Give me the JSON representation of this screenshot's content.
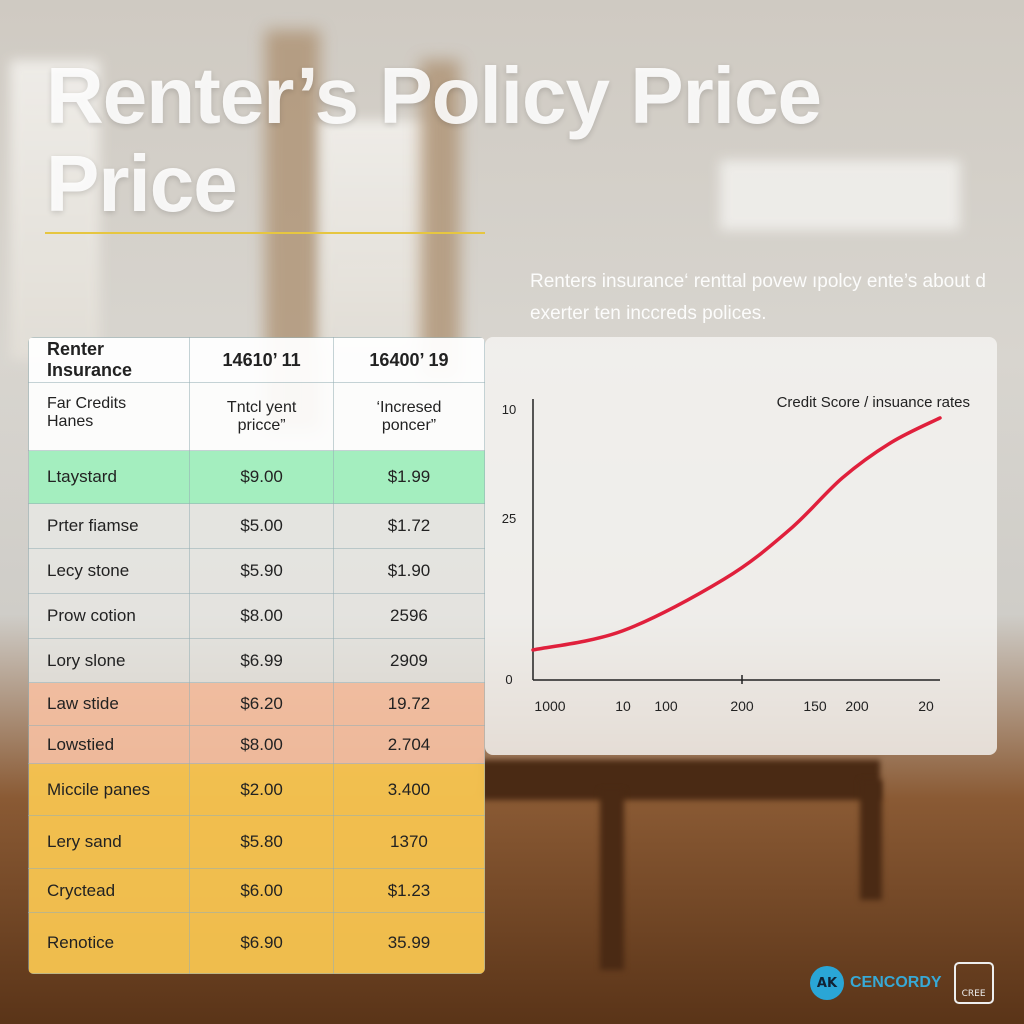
{
  "title": {
    "line1": "Renter’s Policy Price",
    "line2": "Price"
  },
  "description": "Renters insurance‘ renttal povew ıpolcy ente’s about d exerter ten inccreds polices.",
  "table": {
    "header": [
      "Renter Insurance",
      "14610’ 11",
      "16400’ 19"
    ],
    "subheader": [
      "Far Credits Hanes",
      "Tntcl yent pricce”",
      "‘Incresed poncer”"
    ],
    "rows": [
      {
        "label": "Ltaystard",
        "a": "$9.00",
        "b": "$1.99",
        "tone": "green"
      },
      {
        "label": "Prter fiamse",
        "a": "$5.00",
        "b": "$1.72",
        "tone": "white"
      },
      {
        "label": "Lecy stone",
        "a": "$5.90",
        "b": "$1.90",
        "tone": "white"
      },
      {
        "label": "Prow cotion",
        "a": "$8.00",
        "b": "2596",
        "tone": "white"
      },
      {
        "label": "Lory slone",
        "a": "$6.99",
        "b": "2909",
        "tone": "white"
      },
      {
        "label": "Law stide",
        "a": "$6.20",
        "b": "19.72",
        "tone": "peach"
      },
      {
        "label": "Lowstied",
        "a": "$8.00",
        "b": "2.704",
        "tone": "peach"
      },
      {
        "label": "Miccile panes",
        "a": "$2.00",
        "b": "3.400",
        "tone": "yellow"
      },
      {
        "label": "Lery sand",
        "a": "$5.80",
        "b": "1370",
        "tone": "yellow"
      },
      {
        "label": "Cryctead",
        "a": "$6.00",
        "b": "$1.23",
        "tone": "yellow"
      },
      {
        "label": "Renotice",
        "a": "$6.90",
        "b": "35.99",
        "tone": "yellow"
      }
    ]
  },
  "chart_data": {
    "type": "line",
    "title": "Credit Score / insuance rates",
    "y_tick_labels": [
      "10",
      "25",
      "0"
    ],
    "x_tick_labels": [
      "1000",
      "10",
      "100",
      "200",
      "150",
      "200",
      "20"
    ],
    "series": [
      {
        "color": "#e0203c",
        "x": [
          0,
          22,
          47,
          63,
          76,
          88,
          100
        ],
        "y": [
          11,
          18,
          37,
          55,
          74,
          87,
          96
        ]
      }
    ],
    "xlim": [
      0,
      100
    ],
    "ylim": [
      0,
      100
    ],
    "grid": false
  },
  "logo": {
    "text": "CENCORDY",
    "badge": "CREE"
  }
}
